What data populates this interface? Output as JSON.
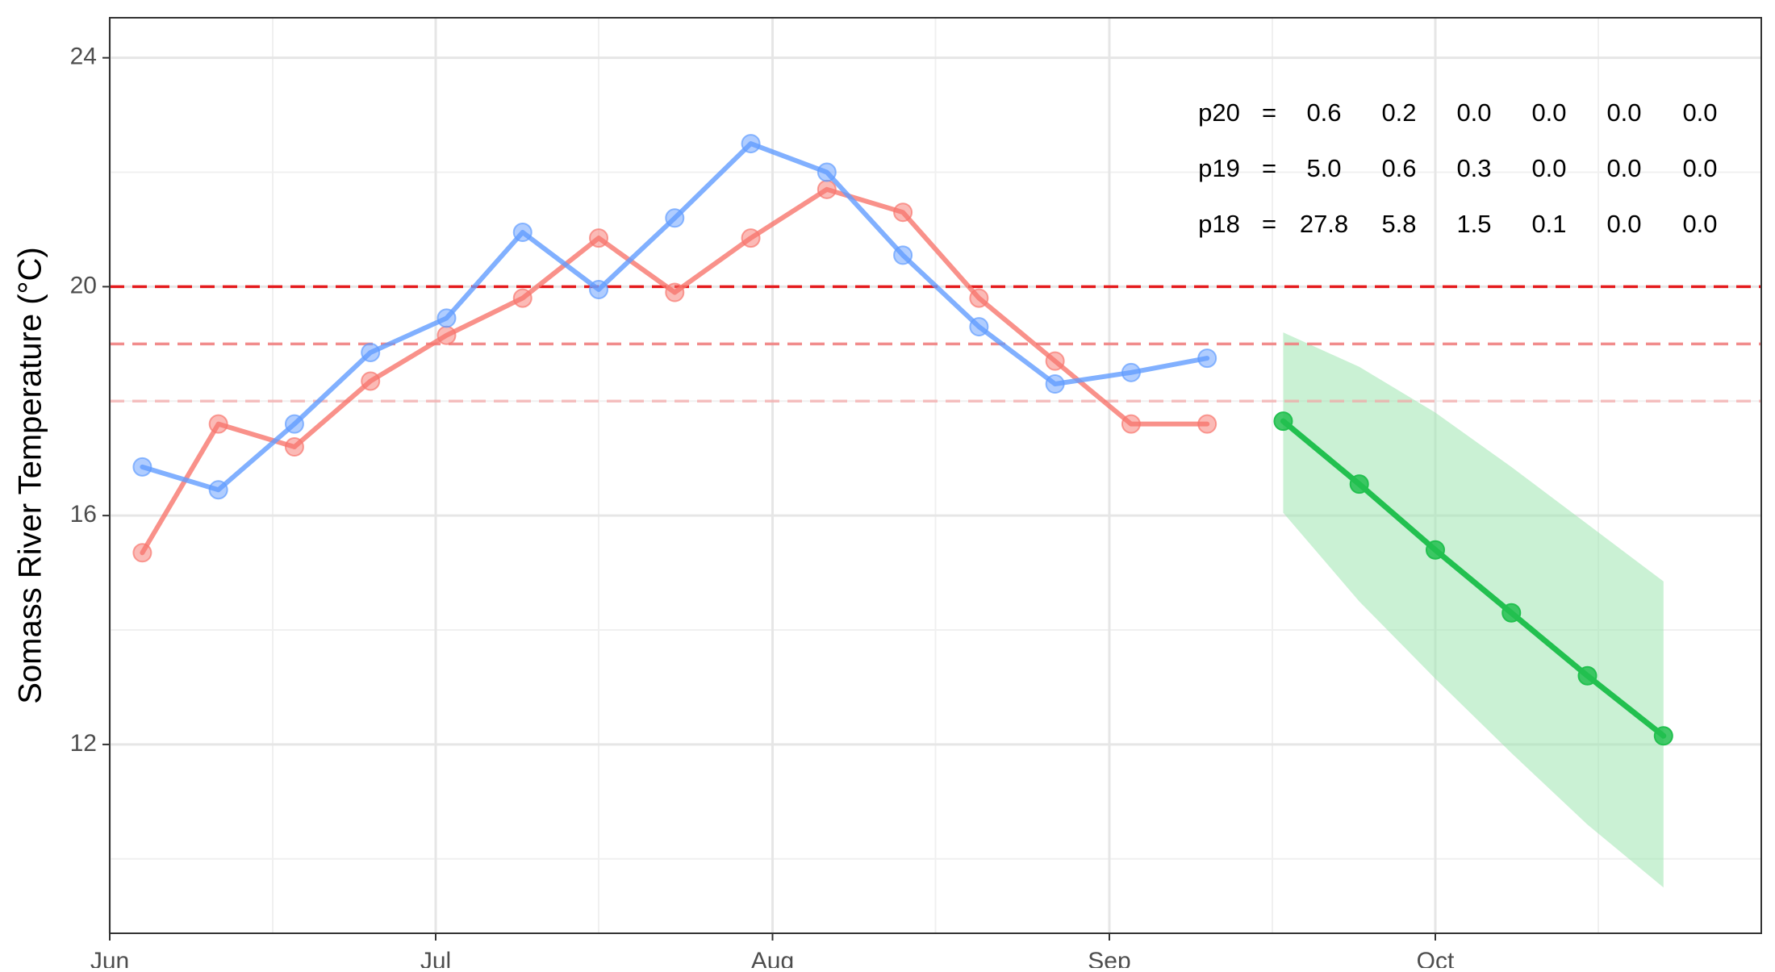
{
  "chart_data": {
    "type": "line",
    "title": "",
    "xlabel": "",
    "ylabel": "Somass River Temperature (°C)",
    "x_type": "date",
    "xlim": [
      "2022-06-01",
      "2022-10-31"
    ],
    "ylim": [
      8.7,
      24.7
    ],
    "x_ticks": [
      {
        "date": "2022-06-01",
        "label": "Jun"
      },
      {
        "date": "2022-07-01",
        "label": "Jul"
      },
      {
        "date": "2022-08-01",
        "label": "Aug"
      },
      {
        "date": "2022-09-01",
        "label": "Sep"
      },
      {
        "date": "2022-10-01",
        "label": "Oct"
      }
    ],
    "x_minor_grid": [
      "2022-06-16",
      "2022-07-16",
      "2022-08-16",
      "2022-09-16",
      "2022-10-16"
    ],
    "y_ticks": [
      12,
      16,
      20,
      24
    ],
    "y_minor_grid": [
      10,
      14,
      18,
      22
    ],
    "grid": true,
    "legend": "none",
    "series": [
      {
        "color": "#f8766d",
        "points": [
          {
            "x": "2022-06-04",
            "y": 15.35
          },
          {
            "x": "2022-06-11",
            "y": 17.6
          },
          {
            "x": "2022-06-18",
            "y": 17.2
          },
          {
            "x": "2022-06-25",
            "y": 18.35
          },
          {
            "x": "2022-07-02",
            "y": 19.15
          },
          {
            "x": "2022-07-09",
            "y": 19.8
          },
          {
            "x": "2022-07-16",
            "y": 20.85
          },
          {
            "x": "2022-07-23",
            "y": 19.9
          },
          {
            "x": "2022-07-30",
            "y": 20.85
          },
          {
            "x": "2022-08-06",
            "y": 21.7
          },
          {
            "x": "2022-08-13",
            "y": 21.3
          },
          {
            "x": "2022-08-20",
            "y": 19.8
          },
          {
            "x": "2022-08-27",
            "y": 18.7
          },
          {
            "x": "2022-09-03",
            "y": 17.6
          },
          {
            "x": "2022-09-10",
            "y": 17.6
          }
        ]
      },
      {
        "color": "#619cff",
        "points": [
          {
            "x": "2022-06-04",
            "y": 16.85
          },
          {
            "x": "2022-06-11",
            "y": 16.45
          },
          {
            "x": "2022-06-18",
            "y": 17.6
          },
          {
            "x": "2022-06-25",
            "y": 18.85
          },
          {
            "x": "2022-07-02",
            "y": 19.45
          },
          {
            "x": "2022-07-09",
            "y": 20.95
          },
          {
            "x": "2022-07-16",
            "y": 19.95
          },
          {
            "x": "2022-07-23",
            "y": 21.2
          },
          {
            "x": "2022-07-30",
            "y": 22.5
          },
          {
            "x": "2022-08-06",
            "y": 22.0
          },
          {
            "x": "2022-08-13",
            "y": 20.55
          },
          {
            "x": "2022-08-20",
            "y": 19.3
          },
          {
            "x": "2022-08-27",
            "y": 18.3
          },
          {
            "x": "2022-09-03",
            "y": 18.5
          },
          {
            "x": "2022-09-10",
            "y": 18.75
          }
        ]
      },
      {
        "color": "#22c04f",
        "band_color": "#9fe6b1",
        "points": [
          {
            "x": "2022-09-17",
            "y": 17.65,
            "lower": 16.05,
            "upper": 19.2
          },
          {
            "x": "2022-09-24",
            "y": 16.55,
            "lower": 14.5,
            "upper": 18.6
          },
          {
            "x": "2022-10-01",
            "y": 15.4,
            "lower": 13.15,
            "upper": 17.8
          },
          {
            "x": "2022-10-08",
            "y": 14.3,
            "lower": 11.85,
            "upper": 16.85
          },
          {
            "x": "2022-10-15",
            "y": 13.2,
            "lower": 10.6,
            "upper": 15.85
          },
          {
            "x": "2022-10-22",
            "y": 12.15,
            "lower": 9.5,
            "upper": 14.85
          }
        ]
      }
    ],
    "reference_lines": [
      {
        "y": 20,
        "color": "#e41a1c",
        "dash": "dashed",
        "opacity": 1.0
      },
      {
        "y": 19,
        "color": "#f08080",
        "dash": "dashed",
        "opacity": 0.9
      },
      {
        "y": 18,
        "color": "#f4a7a7",
        "dash": "dashed",
        "opacity": 0.7
      }
    ],
    "annotations": {
      "probability_table": [
        {
          "label": "p20",
          "eq": "=",
          "values": [
            "0.6",
            "0.2",
            "0.0",
            "0.0",
            "0.0",
            "0.0"
          ]
        },
        {
          "label": "p19",
          "eq": "=",
          "values": [
            "5.0",
            "0.6",
            "0.3",
            "0.0",
            "0.0",
            "0.0"
          ]
        },
        {
          "label": "p18",
          "eq": "=",
          "values": [
            "27.8",
            "5.8",
            "1.5",
            "0.1",
            "0.0",
            "0.0"
          ]
        }
      ]
    }
  }
}
